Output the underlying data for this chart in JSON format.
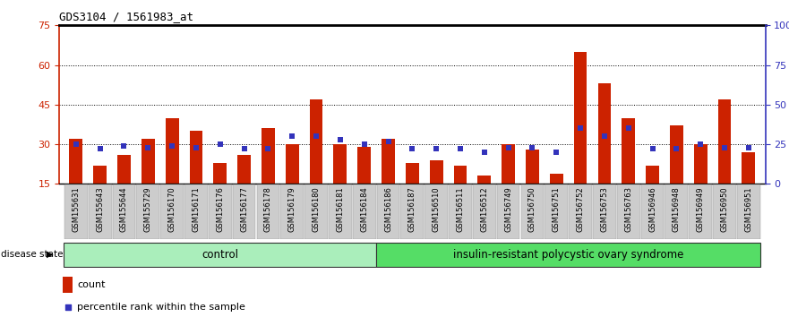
{
  "title": "GDS3104 / 1561983_at",
  "samples": [
    "GSM155631",
    "GSM155643",
    "GSM155644",
    "GSM155729",
    "GSM156170",
    "GSM156171",
    "GSM156176",
    "GSM156177",
    "GSM156178",
    "GSM156179",
    "GSM156180",
    "GSM156181",
    "GSM156184",
    "GSM156186",
    "GSM156187",
    "GSM156510",
    "GSM156511",
    "GSM156512",
    "GSM156749",
    "GSM156750",
    "GSM156751",
    "GSM156752",
    "GSM156753",
    "GSM156763",
    "GSM156946",
    "GSM156948",
    "GSM156949",
    "GSM156950",
    "GSM156951"
  ],
  "count": [
    32,
    22,
    26,
    32,
    40,
    35,
    23,
    26,
    36,
    30,
    47,
    30,
    29,
    32,
    23,
    24,
    22,
    18,
    30,
    28,
    19,
    65,
    53,
    40,
    22,
    37,
    30,
    47,
    27
  ],
  "percentile": [
    25,
    22,
    24,
    23,
    24,
    23,
    25,
    22,
    22,
    30,
    30,
    28,
    25,
    27,
    22,
    22,
    22,
    20,
    23,
    23,
    20,
    35,
    30,
    35,
    22,
    22,
    25,
    23,
    23
  ],
  "group_labels": [
    "control",
    "insulin-resistant polycystic ovary syndrome"
  ],
  "group_sizes": [
    13,
    16
  ],
  "bar_color": "#CC2200",
  "dot_color": "#3333BB",
  "ylim_left": [
    15,
    75
  ],
  "yticks_left": [
    15,
    30,
    45,
    60,
    75
  ],
  "ylim_right": [
    0,
    100
  ],
  "yticks_right": [
    0,
    25,
    50,
    75,
    100
  ],
  "grid_lines": [
    30,
    45,
    60
  ],
  "plot_bg": "#FFFFFF",
  "bar_bottom": 15
}
